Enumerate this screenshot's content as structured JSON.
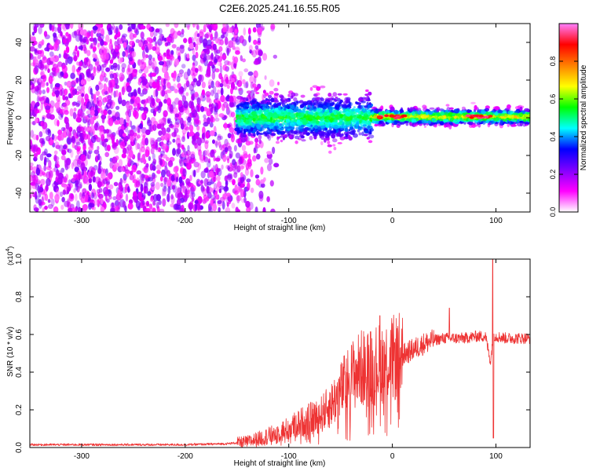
{
  "figure": {
    "title": "C2E6.2025.241.16.55.R05"
  },
  "chart_data": [
    {
      "type": "heatmap",
      "title": "C2E6.2025.241.16.55.R05",
      "xlabel": "Height of straight line (km)",
      "ylabel": "Frequency (Hz)",
      "xlim": [
        -350,
        133
      ],
      "ylim": [
        -50,
        50
      ],
      "x_ticks": [
        -300,
        -200,
        -100,
        0,
        100
      ],
      "x_tick_labels": [
        "-300",
        "-200",
        "-100",
        "0",
        "100"
      ],
      "y_ticks": [
        -40,
        -20,
        0,
        20,
        40
      ],
      "y_tick_labels": [
        "-40",
        "-20",
        "0",
        "20",
        "40"
      ],
      "colorbar": {
        "label": "Normalized spectral amplitude",
        "range": [
          0,
          1
        ],
        "ticks": [
          0.0,
          0.2,
          0.4,
          0.6,
          0.8
        ],
        "tick_labels": [
          "0.0",
          "0.2",
          "0.4",
          "0.6",
          "0.8"
        ],
        "colormap": [
          "#ffffff",
          "#ff00ff",
          "#8000ff",
          "#0000ff",
          "#00ffff",
          "#00ff00",
          "#ffff00",
          "#ff8000",
          "#ff0000",
          "#ff80ff"
        ]
      },
      "regions": [
        {
          "x_range": [
            -350,
            -130
          ],
          "freq_range": [
            -50,
            50
          ],
          "amplitude": 0.15,
          "description": "broadband noise"
        },
        {
          "x_range": [
            -150,
            -20
          ],
          "freq_range": [
            -10,
            10
          ],
          "amplitude": 0.45
        },
        {
          "x_range": [
            -20,
            133
          ],
          "freq_range": [
            -3,
            4
          ],
          "amplitude": 0.6
        }
      ],
      "hotspots_x": [
        -10,
        0,
        10,
        75,
        85,
        90
      ]
    },
    {
      "type": "line",
      "xlabel": "Height of straight line (km)",
      "ylabel": "SNR (10 * v/v)",
      "y_scale_label": "(x10",
      "y_scale_exponent": "4",
      "y_scale_suffix": ")",
      "xlim": [
        -350,
        133
      ],
      "ylim": [
        0,
        1.0
      ],
      "x_ticks": [
        -300,
        -200,
        -100,
        0,
        100
      ],
      "x_tick_labels": [
        "-300",
        "-200",
        "-100",
        "0",
        "100"
      ],
      "y_ticks": [
        0,
        0.2,
        0.4,
        0.6,
        0.8,
        1.0
      ],
      "y_tick_labels": [
        "0.0",
        "0.2",
        "0.4",
        "0.6",
        "0.8",
        "1.0"
      ],
      "color": "#ee3333",
      "series": [
        {
          "x": [
            -350,
            -300,
            -250,
            -200,
            -160,
            -140,
            -120,
            -110,
            -100,
            -90,
            -80,
            -70,
            -60,
            -50,
            -40,
            -30,
            -20,
            -10,
            0,
            10,
            20,
            30,
            40,
            50,
            60,
            70,
            80,
            90,
            95,
            97,
            100,
            110,
            120,
            133
          ],
          "values": [
            0.015,
            0.015,
            0.015,
            0.015,
            0.02,
            0.03,
            0.06,
            0.08,
            0.1,
            0.13,
            0.15,
            0.17,
            0.22,
            0.3,
            0.38,
            0.42,
            0.43,
            0.45,
            0.47,
            0.49,
            0.52,
            0.55,
            0.57,
            0.58,
            0.58,
            0.58,
            0.59,
            0.59,
            0.45,
            0.6,
            0.59,
            0.58,
            0.58,
            0.58
          ]
        }
      ],
      "peaks": [
        {
          "x": -12,
          "y": 0.7
        },
        {
          "x": 55,
          "y": 0.74
        },
        {
          "x": 97,
          "y": 1.0
        }
      ],
      "dips": [
        {
          "x": 97,
          "y": 0.05
        }
      ]
    }
  ]
}
